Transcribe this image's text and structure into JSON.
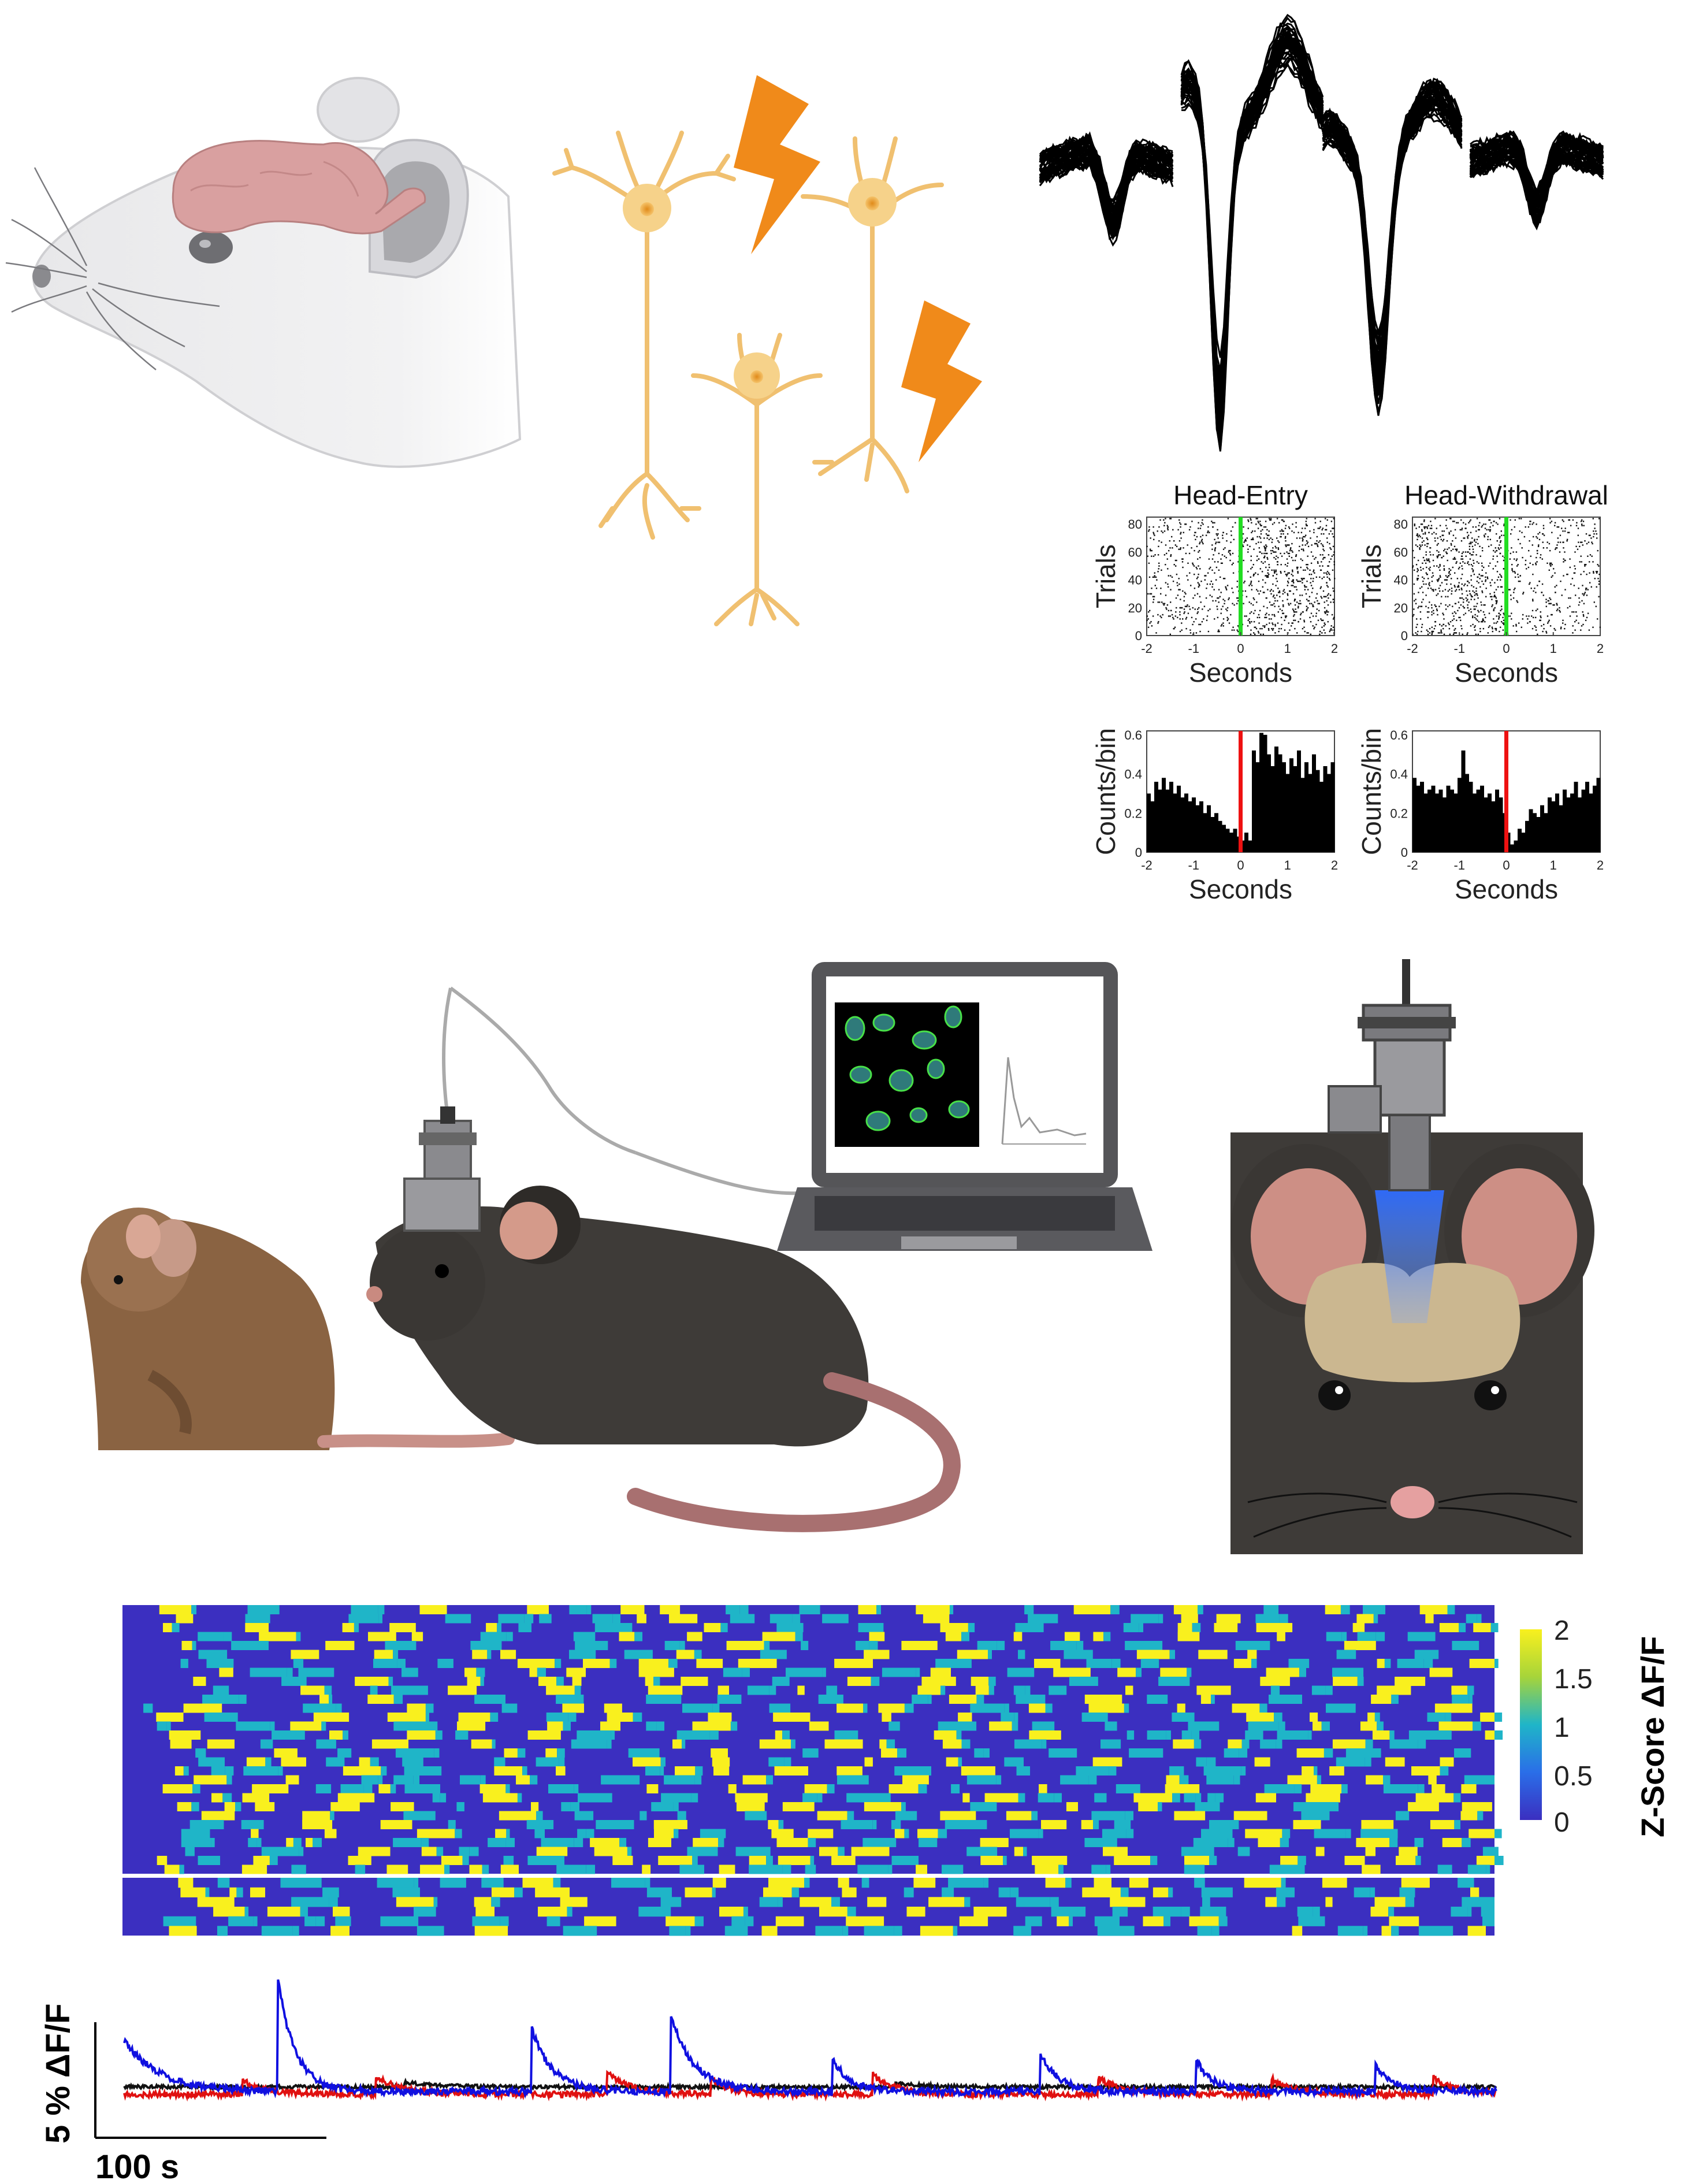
{
  "rasters": [
    {
      "title": "Head-Entry",
      "ylabel": "Trials",
      "xlabel": "Seconds",
      "yticks": [
        "0",
        "20",
        "40",
        "60",
        "80"
      ],
      "xticks": [
        "-2",
        "-1",
        "0",
        "1",
        "2"
      ]
    },
    {
      "title": "Head-Withdrawal",
      "ylabel": "Trials",
      "xlabel": "Seconds",
      "yticks": [
        "0",
        "20",
        "40",
        "60",
        "80"
      ],
      "xticks": [
        "-2",
        "-1",
        "0",
        "1",
        "2"
      ]
    }
  ],
  "histograms": [
    {
      "ylabel": "Counts/bin",
      "xlabel": "Seconds",
      "yticks": [
        "0",
        "0.2",
        "0.4",
        "0.6"
      ],
      "xticks": [
        "-2",
        "-1",
        "0",
        "1",
        "2"
      ]
    },
    {
      "ylabel": "Counts/bin",
      "xlabel": "Seconds",
      "yticks": [
        "0",
        "0.2",
        "0.4",
        "0.6"
      ],
      "xticks": [
        "-2",
        "-1",
        "0",
        "1",
        "2"
      ]
    }
  ],
  "heatmap": {
    "colorbar_ticks": [
      "2",
      "1.5",
      "1",
      "0.5",
      "0"
    ],
    "colorbar_label": "Z-Score ΔF/F",
    "colors": {
      "low": "#3b2fc0",
      "mid": "#1fb5c8",
      "high": "#f9f01e"
    }
  },
  "traces": {
    "scale_y": "5 % ΔF/F",
    "scale_x": "100 s",
    "colors": {
      "blue": "#1010e0",
      "red": "#e01010",
      "black": "#111111"
    }
  },
  "chart_data": [
    {
      "type": "scatter",
      "title": "Head-Entry",
      "xlabel": "Seconds",
      "ylabel": "Trials",
      "xlim": [
        -2,
        2
      ],
      "ylim": [
        0,
        85
      ],
      "event_marker_x": 0,
      "event_marker_color": "#22dd22"
    },
    {
      "type": "scatter",
      "title": "Head-Withdrawal",
      "xlabel": "Seconds",
      "ylabel": "Trials",
      "xlim": [
        -2,
        2
      ],
      "ylim": [
        0,
        85
      ],
      "event_marker_x": 0,
      "event_marker_color": "#22dd22"
    },
    {
      "type": "bar",
      "xlabel": "Seconds",
      "ylabel": "Counts/bin",
      "xlim": [
        -2,
        2
      ],
      "ylim": [
        0,
        0.62
      ],
      "event_marker_x": 0,
      "event_marker_color": "#ee1111",
      "values": [
        0.3,
        0.26,
        0.36,
        0.32,
        0.38,
        0.32,
        0.36,
        0.3,
        0.34,
        0.28,
        0.3,
        0.26,
        0.28,
        0.24,
        0.26,
        0.2,
        0.24,
        0.18,
        0.2,
        0.16,
        0.14,
        0.12,
        0.1,
        0.12,
        0.08,
        0.06,
        0.1,
        0.06,
        0.52,
        0.46,
        0.61,
        0.6,
        0.5,
        0.44,
        0.54,
        0.5,
        0.46,
        0.4,
        0.48,
        0.44,
        0.52,
        0.38,
        0.46,
        0.4,
        0.5,
        0.42,
        0.36,
        0.44,
        0.4,
        0.46
      ]
    },
    {
      "type": "bar",
      "xlabel": "Seconds",
      "ylabel": "Counts/bin",
      "xlim": [
        -2,
        2
      ],
      "ylim": [
        0,
        0.62
      ],
      "event_marker_x": 0,
      "event_marker_color": "#ee1111",
      "values": [
        0.38,
        0.34,
        0.36,
        0.3,
        0.32,
        0.34,
        0.3,
        0.32,
        0.28,
        0.34,
        0.32,
        0.3,
        0.38,
        0.52,
        0.4,
        0.36,
        0.3,
        0.32,
        0.34,
        0.28,
        0.3,
        0.26,
        0.32,
        0.28,
        0.2,
        0.1,
        0.04,
        0.06,
        0.12,
        0.1,
        0.16,
        0.22,
        0.2,
        0.18,
        0.24,
        0.2,
        0.28,
        0.26,
        0.3,
        0.24,
        0.32,
        0.28,
        0.3,
        0.36,
        0.28,
        0.32,
        0.36,
        0.3,
        0.34,
        0.38
      ]
    },
    {
      "type": "heatmap",
      "zlim": [
        0,
        2
      ],
      "colorbar_label": "Z-Score ΔF/F",
      "rows_top_block": 30,
      "rows_bottom_block": 6
    },
    {
      "type": "line",
      "series_colors": [
        "#1010e0",
        "#e01010",
        "#111111"
      ]
    }
  ]
}
